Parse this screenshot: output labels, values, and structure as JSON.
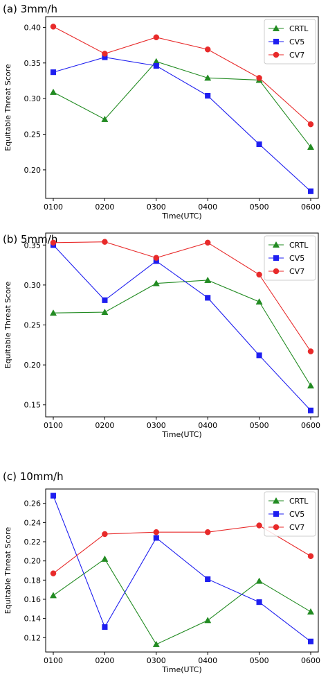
{
  "chart_data": [
    {
      "type": "line",
      "title": "(a) 3mm/h",
      "xlabel": "Time(UTC)",
      "ylabel": "Equitable Threat Score",
      "categories": [
        "0100",
        "0200",
        "0300",
        "0400",
        "0500",
        "0600"
      ],
      "ylim": [
        0.16,
        0.415
      ],
      "yticks": [
        "0.20",
        "0.25",
        "0.30",
        "0.35",
        "0.40"
      ],
      "legend": "top-right",
      "series": [
        {
          "name": "CRTL",
          "color": "#228b22",
          "marker": "triangle",
          "values": [
            0.309,
            0.271,
            0.352,
            0.329,
            0.326,
            0.232
          ]
        },
        {
          "name": "CV5",
          "color": "#1e1ef0",
          "marker": "square",
          "values": [
            0.337,
            0.358,
            0.346,
            0.304,
            0.236,
            0.17
          ]
        },
        {
          "name": "CV7",
          "color": "#e82a2a",
          "marker": "circle",
          "values": [
            0.401,
            0.363,
            0.386,
            0.369,
            0.329,
            0.264
          ]
        }
      ]
    },
    {
      "type": "line",
      "title": "(b) 5mm/h",
      "xlabel": "Time(UTC)",
      "ylabel": "Equitable Threat Score",
      "categories": [
        "0100",
        "0200",
        "0300",
        "0400",
        "0500",
        "0600"
      ],
      "ylim": [
        0.135,
        0.365
      ],
      "yticks": [
        "0.15",
        "0.20",
        "0.25",
        "0.30",
        "0.35"
      ],
      "legend": "top-right",
      "series": [
        {
          "name": "CRTL",
          "color": "#228b22",
          "marker": "triangle",
          "values": [
            0.265,
            0.266,
            0.302,
            0.306,
            0.279,
            0.174
          ]
        },
        {
          "name": "CV5",
          "color": "#1e1ef0",
          "marker": "square",
          "values": [
            0.35,
            0.281,
            0.33,
            0.284,
            0.212,
            0.143
          ]
        },
        {
          "name": "CV7",
          "color": "#e82a2a",
          "marker": "circle",
          "values": [
            0.353,
            0.354,
            0.334,
            0.353,
            0.313,
            0.217
          ]
        }
      ]
    },
    {
      "type": "line",
      "title": "(c) 10mm/h",
      "xlabel": "Time(UTC)",
      "ylabel": "Equitable Threat Score",
      "categories": [
        "0100",
        "0200",
        "0300",
        "0400",
        "0500",
        "0600"
      ],
      "ylim": [
        0.105,
        0.275
      ],
      "yticks": [
        "0.12",
        "0.14",
        "0.16",
        "0.18",
        "0.20",
        "0.22",
        "0.24",
        "0.26"
      ],
      "legend": "top-right",
      "series": [
        {
          "name": "CRTL",
          "color": "#228b22",
          "marker": "triangle",
          "values": [
            0.164,
            0.202,
            0.113,
            0.138,
            0.179,
            0.147
          ]
        },
        {
          "name": "CV5",
          "color": "#1e1ef0",
          "marker": "square",
          "values": [
            0.268,
            0.131,
            0.224,
            0.181,
            0.157,
            0.116
          ]
        },
        {
          "name": "CV7",
          "color": "#e82a2a",
          "marker": "circle",
          "values": [
            0.187,
            0.228,
            0.23,
            0.23,
            0.237,
            0.205
          ]
        }
      ]
    }
  ]
}
